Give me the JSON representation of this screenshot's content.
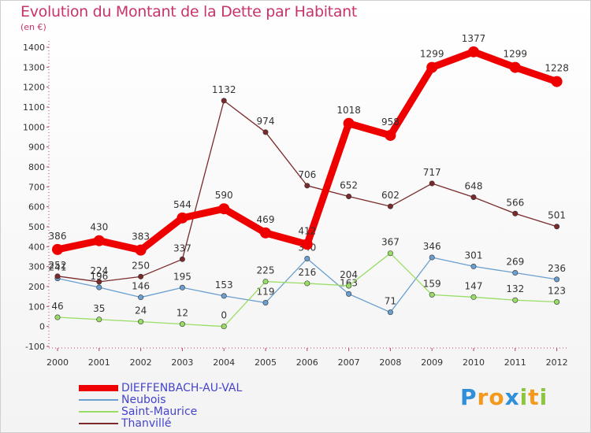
{
  "title": "Evolution du Montant de la Dette par Habitant",
  "unit": "(en €)",
  "chart_data": {
    "type": "line",
    "title": "Evolution du Montant de la Dette par Habitant",
    "ylabel": "(en €)",
    "ylim": [
      -100,
      1400
    ],
    "yticks": [
      -100,
      0,
      100,
      200,
      300,
      400,
      500,
      600,
      700,
      800,
      900,
      1000,
      1100,
      1200,
      1300,
      1400
    ],
    "x": [
      "2000",
      "2001",
      "2002",
      "2003",
      "2004",
      "2005",
      "2006",
      "2007",
      "2008",
      "2009",
      "2010",
      "2011",
      "2012"
    ],
    "grid": false,
    "legend_position": "bottom-left",
    "series": [
      {
        "name": "Neubois",
        "color": "#6a9fcf",
        "values": [
          241,
          196,
          146,
          195,
          153,
          119,
          340,
          163,
          71,
          346,
          301,
          269,
          236
        ],
        "labels": [
          "241",
          "196",
          "146",
          "195",
          "153",
          "119",
          "340",
          "163",
          "71",
          "346",
          "301",
          "269",
          "236"
        ]
      },
      {
        "name": "Saint-Maurice",
        "color": "#99dd66",
        "values": [
          46,
          35,
          24,
          12,
          0,
          225,
          216,
          204,
          367,
          159,
          147,
          132,
          123
        ],
        "labels": [
          "46",
          "35",
          "24",
          "12",
          "0",
          "225",
          "216",
          "204",
          "367",
          "159",
          "147",
          "132",
          "123"
        ]
      },
      {
        "name": "Thanvillé",
        "color": "#7a2a2a",
        "values": [
          252,
          224,
          250,
          337,
          1132,
          974,
          706,
          652,
          602,
          717,
          648,
          566,
          501
        ],
        "labels": [
          "252",
          "224",
          "250",
          "337",
          "1132",
          "974",
          "706",
          "652",
          "602",
          "717",
          "648",
          "566",
          "501"
        ]
      },
      {
        "name": "DIEFFENBACH-AU-VAL",
        "color": "#ee0000",
        "values": [
          386,
          430,
          383,
          544,
          590,
          469,
          412,
          1018,
          958,
          1299,
          1377,
          1299,
          1228
        ],
        "labels": [
          "386",
          "430",
          "383",
          "544",
          "590",
          "469",
          "412",
          "1018",
          "958",
          "1299",
          "1377",
          "1299",
          "1228"
        ]
      }
    ]
  },
  "legend": {
    "items": [
      {
        "label": "DIEFFENBACH-AU-VAL",
        "color": "#ee0000",
        "weight": "thick"
      },
      {
        "label": "Neubois",
        "color": "#6a9fcf",
        "weight": "thin"
      },
      {
        "label": "Saint-Maurice",
        "color": "#99dd66",
        "weight": "thin"
      },
      {
        "label": "Thanvillé",
        "color": "#7a2a2a",
        "weight": "thin"
      }
    ]
  },
  "logo": {
    "letters": [
      "P",
      "r",
      "o",
      "x",
      "i",
      "t",
      "i"
    ],
    "colors": [
      "#2f8fd8",
      "#f39a1e",
      "#f39a1e",
      "#2f8fd8",
      "#8cc63f",
      "#f39a1e",
      "#8cc63f"
    ]
  }
}
